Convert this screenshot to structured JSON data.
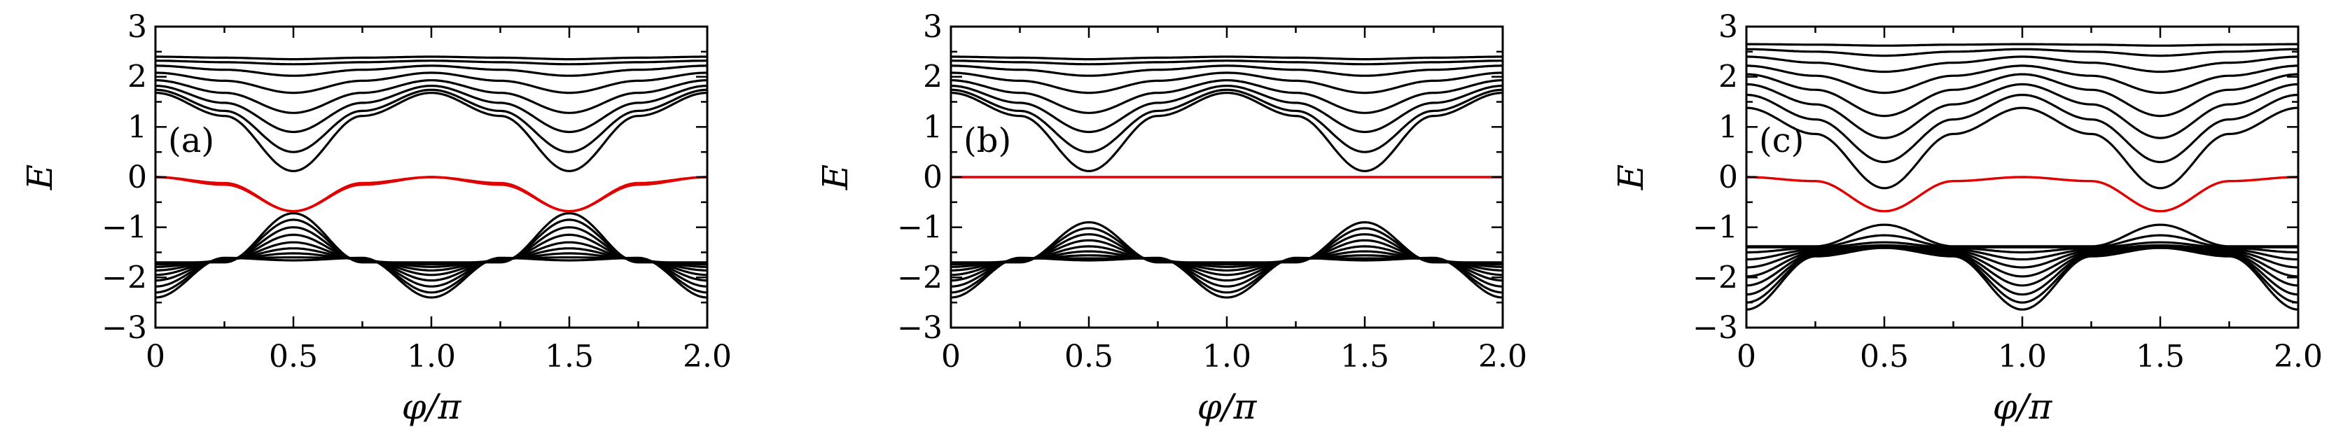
{
  "figure": {
    "page_bg": "#ffffff",
    "band_color": "#000000",
    "edge_color": "#e00000"
  },
  "chart_data": [
    {
      "type": "line",
      "panel_label": "(a)",
      "xlabel": "φ/π",
      "ylabel": "E",
      "xlim": [
        0,
        2
      ],
      "ylim": [
        -3,
        3
      ],
      "xticks": [
        "0",
        "0.5",
        "1.0",
        "1.5",
        "2.0"
      ],
      "yticks": [
        "3",
        "2",
        "1",
        "0",
        "−1",
        "−2",
        "−3"
      ],
      "x": [
        0,
        0.25,
        0.5,
        0.75,
        1.0,
        1.25,
        1.5,
        1.75,
        2.0
      ],
      "upper_bands": [
        [
          2.4,
          2.38,
          2.35,
          2.38,
          2.4,
          2.38,
          2.35,
          2.38,
          2.4
        ],
        [
          2.32,
          2.29,
          2.25,
          2.29,
          2.32,
          2.29,
          2.25,
          2.29,
          2.32
        ],
        [
          2.22,
          2.14,
          2.02,
          2.14,
          2.22,
          2.14,
          2.02,
          2.14,
          2.22
        ],
        [
          2.08,
          1.92,
          1.68,
          1.92,
          2.08,
          1.92,
          1.68,
          1.92,
          2.08
        ],
        [
          1.93,
          1.68,
          1.28,
          1.68,
          1.93,
          1.68,
          1.28,
          1.68,
          1.93
        ],
        [
          1.82,
          1.48,
          0.9,
          1.48,
          1.82,
          1.48,
          0.9,
          1.48,
          1.82
        ],
        [
          1.74,
          1.32,
          0.5,
          1.32,
          1.74,
          1.32,
          0.5,
          1.32,
          1.74
        ],
        [
          1.68,
          1.22,
          0.12,
          1.22,
          1.68,
          1.22,
          0.12,
          1.22,
          1.68
        ]
      ],
      "lower_bands": [
        [
          -1.7,
          -1.7,
          -0.72,
          -1.7,
          -1.7,
          -1.7,
          -0.72,
          -1.7,
          -1.7
        ],
        [
          -1.74,
          -1.68,
          -0.85,
          -1.68,
          -1.74,
          -1.68,
          -0.85,
          -1.68,
          -1.74
        ],
        [
          -1.79,
          -1.67,
          -1.0,
          -1.67,
          -1.79,
          -1.67,
          -1.0,
          -1.67,
          -1.79
        ],
        [
          -1.86,
          -1.66,
          -1.15,
          -1.66,
          -1.86,
          -1.66,
          -1.15,
          -1.66,
          -1.86
        ],
        [
          -1.95,
          -1.65,
          -1.3,
          -1.65,
          -1.95,
          -1.65,
          -1.3,
          -1.65,
          -1.95
        ],
        [
          -2.06,
          -1.64,
          -1.42,
          -1.64,
          -2.06,
          -1.64,
          -1.42,
          -1.64,
          -2.06
        ],
        [
          -2.18,
          -1.63,
          -1.52,
          -1.63,
          -2.18,
          -1.63,
          -1.52,
          -1.63,
          -2.18
        ],
        [
          -2.3,
          -1.62,
          -1.6,
          -1.62,
          -2.3,
          -1.62,
          -1.6,
          -1.62,
          -2.3
        ],
        [
          -2.4,
          -1.61,
          -1.66,
          -1.61,
          -2.4,
          -1.61,
          -1.66,
          -1.61,
          -2.4
        ]
      ],
      "edge_states": [
        [
          0.0,
          -0.15,
          -0.68,
          -0.12,
          0.0,
          -0.15,
          -0.68,
          -0.12,
          0.0
        ],
        [
          0.0,
          -0.12,
          -0.68,
          -0.15,
          0.0,
          -0.12,
          -0.68,
          -0.15,
          0.0
        ]
      ]
    },
    {
      "type": "line",
      "panel_label": "(b)",
      "xlabel": "φ/π",
      "ylabel": "E",
      "xlim": [
        0,
        2
      ],
      "ylim": [
        -3,
        3
      ],
      "xticks": [
        "0",
        "0.5",
        "1.0",
        "1.5",
        "2.0"
      ],
      "yticks": [
        "3",
        "2",
        "1",
        "0",
        "−1",
        "−2",
        "−3"
      ],
      "x": [
        0,
        0.25,
        0.5,
        0.75,
        1.0,
        1.25,
        1.5,
        1.75,
        2.0
      ],
      "upper_bands": [
        [
          2.4,
          2.38,
          2.35,
          2.38,
          2.4,
          2.38,
          2.35,
          2.38,
          2.4
        ],
        [
          2.32,
          2.29,
          2.25,
          2.29,
          2.32,
          2.29,
          2.25,
          2.29,
          2.32
        ],
        [
          2.22,
          2.14,
          2.02,
          2.14,
          2.22,
          2.14,
          2.02,
          2.14,
          2.22
        ],
        [
          2.08,
          1.92,
          1.68,
          1.92,
          2.08,
          1.92,
          1.68,
          1.92,
          2.08
        ],
        [
          1.93,
          1.68,
          1.28,
          1.68,
          1.93,
          1.68,
          1.28,
          1.68,
          1.93
        ],
        [
          1.82,
          1.48,
          0.9,
          1.48,
          1.82,
          1.48,
          0.9,
          1.48,
          1.82
        ],
        [
          1.74,
          1.32,
          0.5,
          1.32,
          1.74,
          1.32,
          0.5,
          1.32,
          1.74
        ],
        [
          1.68,
          1.22,
          0.12,
          1.22,
          1.68,
          1.22,
          0.12,
          1.22,
          1.68
        ]
      ],
      "lower_bands": [
        [
          -1.7,
          -1.7,
          -0.9,
          -1.7,
          -1.7,
          -1.7,
          -0.9,
          -1.7,
          -1.7
        ],
        [
          -1.74,
          -1.68,
          -1.02,
          -1.68,
          -1.74,
          -1.68,
          -1.02,
          -1.68,
          -1.74
        ],
        [
          -1.79,
          -1.67,
          -1.14,
          -1.67,
          -1.79,
          -1.67,
          -1.14,
          -1.67,
          -1.79
        ],
        [
          -1.86,
          -1.66,
          -1.26,
          -1.66,
          -1.86,
          -1.66,
          -1.26,
          -1.66,
          -1.86
        ],
        [
          -1.95,
          -1.65,
          -1.38,
          -1.65,
          -1.95,
          -1.65,
          -1.38,
          -1.65,
          -1.95
        ],
        [
          -2.06,
          -1.64,
          -1.48,
          -1.64,
          -2.06,
          -1.64,
          -1.48,
          -1.64,
          -2.06
        ],
        [
          -2.18,
          -1.63,
          -1.56,
          -1.63,
          -2.18,
          -1.63,
          -1.56,
          -1.63,
          -2.18
        ],
        [
          -2.3,
          -1.62,
          -1.62,
          -1.62,
          -2.3,
          -1.62,
          -1.62,
          -1.62,
          -2.3
        ],
        [
          -2.4,
          -1.61,
          -1.66,
          -1.61,
          -2.4,
          -1.61,
          -1.66,
          -1.61,
          -2.4
        ]
      ],
      "edge_states": [
        [
          0.0,
          0.0,
          0.0,
          0.0,
          0.0,
          0.0,
          0.0,
          0.0,
          0.0
        ]
      ]
    },
    {
      "type": "line",
      "panel_label": "(c)",
      "xlabel": "φ/π",
      "ylabel": "E",
      "xlim": [
        0,
        2
      ],
      "ylim": [
        -3,
        3
      ],
      "xticks": [
        "0",
        "0.5",
        "1.0",
        "1.5",
        "2.0"
      ],
      "yticks": [
        "3",
        "2",
        "1",
        "0",
        "−1",
        "−2",
        "−3"
      ],
      "x": [
        0,
        0.25,
        0.5,
        0.75,
        1.0,
        1.25,
        1.5,
        1.75,
        2.0
      ],
      "upper_bands": [
        [
          2.65,
          2.64,
          2.62,
          2.64,
          2.65,
          2.64,
          2.62,
          2.64,
          2.65
        ],
        [
          2.55,
          2.5,
          2.42,
          2.5,
          2.55,
          2.5,
          2.42,
          2.5,
          2.55
        ],
        [
          2.4,
          2.28,
          2.1,
          2.28,
          2.4,
          2.28,
          2.1,
          2.28,
          2.4
        ],
        [
          2.22,
          2.02,
          1.68,
          2.02,
          2.22,
          2.02,
          1.68,
          2.02,
          2.22
        ],
        [
          2.05,
          1.74,
          1.22,
          1.74,
          2.05,
          1.74,
          1.22,
          1.74,
          2.05
        ],
        [
          1.85,
          1.45,
          0.78,
          1.45,
          1.85,
          1.45,
          0.78,
          1.45,
          1.85
        ],
        [
          1.64,
          1.15,
          0.3,
          1.15,
          1.64,
          1.15,
          0.3,
          1.15,
          1.64
        ],
        [
          1.38,
          0.86,
          -0.22,
          0.86,
          1.38,
          0.86,
          -0.22,
          0.86,
          1.38
        ]
      ],
      "lower_bands": [
        [
          -1.38,
          -1.38,
          -0.95,
          -1.38,
          -1.38,
          -1.38,
          -0.95,
          -1.38,
          -1.38
        ],
        [
          -1.4,
          -1.4,
          -1.16,
          -1.4,
          -1.4,
          -1.4,
          -1.16,
          -1.4,
          -1.4
        ],
        [
          -1.5,
          -1.41,
          -1.3,
          -1.41,
          -1.5,
          -1.41,
          -1.3,
          -1.41,
          -1.5
        ],
        [
          -1.64,
          -1.44,
          -1.36,
          -1.44,
          -1.64,
          -1.44,
          -1.36,
          -1.44,
          -1.64
        ],
        [
          -1.8,
          -1.47,
          -1.38,
          -1.47,
          -1.8,
          -1.47,
          -1.38,
          -1.47,
          -1.8
        ],
        [
          -1.98,
          -1.5,
          -1.39,
          -1.5,
          -1.98,
          -1.5,
          -1.39,
          -1.5,
          -1.98
        ],
        [
          -2.16,
          -1.53,
          -1.4,
          -1.53,
          -2.16,
          -1.53,
          -1.4,
          -1.53,
          -2.16
        ],
        [
          -2.34,
          -1.55,
          -1.4,
          -1.55,
          -2.34,
          -1.55,
          -1.4,
          -1.55,
          -2.34
        ],
        [
          -2.5,
          -1.57,
          -1.41,
          -1.57,
          -2.5,
          -1.57,
          -1.41,
          -1.57,
          -2.5
        ],
        [
          -2.64,
          -1.58,
          -1.41,
          -1.58,
          -2.64,
          -1.58,
          -1.41,
          -1.58,
          -2.64
        ]
      ],
      "edge_states": [
        [
          0.0,
          -0.08,
          -0.68,
          -0.08,
          0.0,
          -0.08,
          -0.68,
          -0.08,
          0.0
        ]
      ]
    }
  ]
}
